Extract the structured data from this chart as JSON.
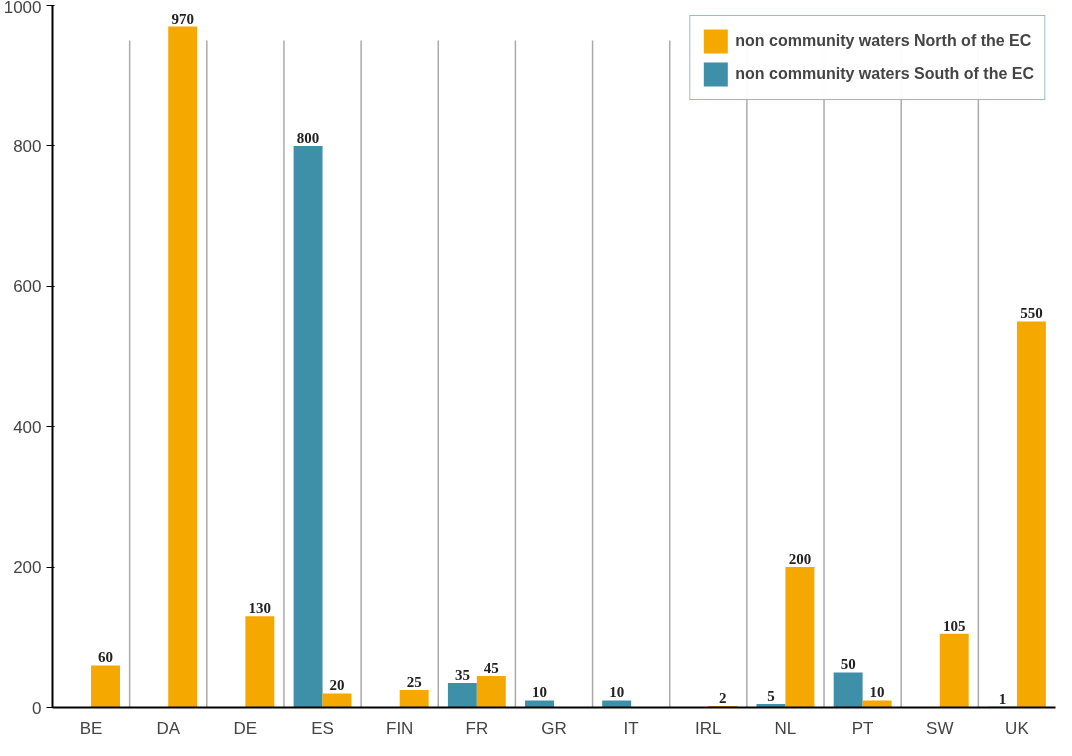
{
  "chart_data": {
    "type": "bar",
    "categories": [
      "BE",
      "DA",
      "DE",
      "ES",
      "FIN",
      "FR",
      "GR",
      "IT",
      "IRL",
      "NL",
      "PT",
      "SW",
      "UK"
    ],
    "series": [
      {
        "name": "non community waters South of the EC",
        "color": "#3e8fa8",
        "values": [
          null,
          null,
          null,
          800,
          null,
          35,
          10,
          10,
          null,
          5,
          50,
          null,
          1
        ]
      },
      {
        "name": "non community waters North of the EC",
        "color": "#f5a800",
        "values": [
          60,
          970,
          130,
          20,
          25,
          45,
          null,
          null,
          2,
          200,
          10,
          105,
          550
        ]
      }
    ],
    "ylim": [
      0,
      1000
    ],
    "yticks": [
      0,
      200,
      400,
      600,
      800,
      1000
    ],
    "grid": "x",
    "legend": "top right",
    "data_labels": true
  }
}
